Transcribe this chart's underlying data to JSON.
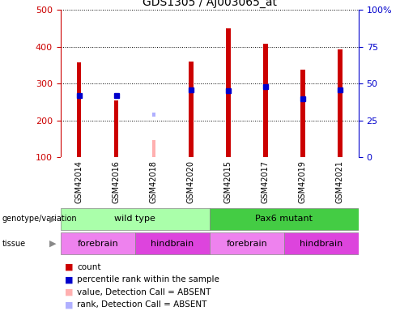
{
  "title": "GDS1305 / AJ003065_at",
  "samples": [
    "GSM42014",
    "GSM42016",
    "GSM42018",
    "GSM42020",
    "GSM42015",
    "GSM42017",
    "GSM42019",
    "GSM42021"
  ],
  "counts": [
    358,
    255,
    null,
    360,
    450,
    408,
    337,
    392
  ],
  "absent_values": [
    null,
    null,
    148,
    null,
    null,
    null,
    null,
    null
  ],
  "percentile_ranks": [
    42,
    42,
    null,
    46,
    45,
    48,
    40,
    46
  ],
  "absent_ranks": [
    null,
    null,
    29,
    null,
    null,
    null,
    null,
    null
  ],
  "ylim_left": [
    100,
    500
  ],
  "ylim_right": [
    0,
    100
  ],
  "yticks_left": [
    100,
    200,
    300,
    400,
    500
  ],
  "yticks_right": [
    0,
    25,
    50,
    75,
    100
  ],
  "yticklabels_right": [
    "0",
    "25",
    "50",
    "75",
    "100%"
  ],
  "bar_color": "#cc0000",
  "absent_bar_color": "#ffb0b0",
  "blue_marker_color": "#0000cc",
  "absent_rank_color": "#b0b0ff",
  "grid_color": "#000000",
  "ax_bg_color": "#ffffff",
  "geno_groups": [
    {
      "label": "wild type",
      "start": 0,
      "end": 4,
      "color": "#aaffaa"
    },
    {
      "label": "Pax6 mutant",
      "start": 4,
      "end": 8,
      "color": "#44cc44"
    }
  ],
  "tissue_groups": [
    {
      "label": "forebrain",
      "start": 0,
      "end": 2,
      "color": "#ee82ee"
    },
    {
      "label": "hindbrain",
      "start": 2,
      "end": 4,
      "color": "#dd44dd"
    },
    {
      "label": "forebrain",
      "start": 4,
      "end": 6,
      "color": "#ee82ee"
    },
    {
      "label": "hindbrain",
      "start": 6,
      "end": 8,
      "color": "#dd44dd"
    }
  ],
  "legend_items": [
    {
      "label": "count",
      "color": "#cc0000"
    },
    {
      "label": "percentile rank within the sample",
      "color": "#0000cc"
    },
    {
      "label": "value, Detection Call = ABSENT",
      "color": "#ffb0b0"
    },
    {
      "label": "rank, Detection Call = ABSENT",
      "color": "#b0b0ff"
    }
  ],
  "left_label_color": "#cc0000",
  "right_label_color": "#0000cc",
  "bar_width": 0.12,
  "absent_bar_width": 0.08,
  "blue_marker_size": 5
}
